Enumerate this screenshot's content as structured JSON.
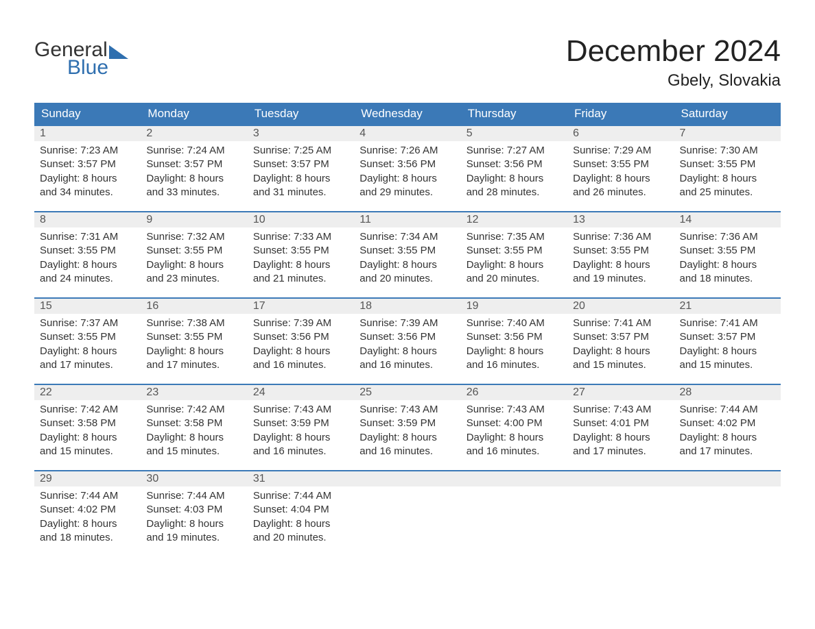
{
  "logo": {
    "line1": "General",
    "line2": "Blue"
  },
  "title": "December 2024",
  "location": "Gbely, Slovakia",
  "colors": {
    "header_bg": "#3b79b7",
    "header_text": "#ffffff",
    "daynum_bg": "#eeeeee",
    "daynum_border": "#3b79b7",
    "body_text": "#333333",
    "logo_blue": "#2f6faf",
    "logo_gray": "#333333"
  },
  "day_headers": [
    "Sunday",
    "Monday",
    "Tuesday",
    "Wednesday",
    "Thursday",
    "Friday",
    "Saturday"
  ],
  "weeks": [
    [
      {
        "n": "1",
        "sunrise": "Sunrise: 7:23 AM",
        "sunset": "Sunset: 3:57 PM",
        "d1": "Daylight: 8 hours",
        "d2": "and 34 minutes."
      },
      {
        "n": "2",
        "sunrise": "Sunrise: 7:24 AM",
        "sunset": "Sunset: 3:57 PM",
        "d1": "Daylight: 8 hours",
        "d2": "and 33 minutes."
      },
      {
        "n": "3",
        "sunrise": "Sunrise: 7:25 AM",
        "sunset": "Sunset: 3:57 PM",
        "d1": "Daylight: 8 hours",
        "d2": "and 31 minutes."
      },
      {
        "n": "4",
        "sunrise": "Sunrise: 7:26 AM",
        "sunset": "Sunset: 3:56 PM",
        "d1": "Daylight: 8 hours",
        "d2": "and 29 minutes."
      },
      {
        "n": "5",
        "sunrise": "Sunrise: 7:27 AM",
        "sunset": "Sunset: 3:56 PM",
        "d1": "Daylight: 8 hours",
        "d2": "and 28 minutes."
      },
      {
        "n": "6",
        "sunrise": "Sunrise: 7:29 AM",
        "sunset": "Sunset: 3:55 PM",
        "d1": "Daylight: 8 hours",
        "d2": "and 26 minutes."
      },
      {
        "n": "7",
        "sunrise": "Sunrise: 7:30 AM",
        "sunset": "Sunset: 3:55 PM",
        "d1": "Daylight: 8 hours",
        "d2": "and 25 minutes."
      }
    ],
    [
      {
        "n": "8",
        "sunrise": "Sunrise: 7:31 AM",
        "sunset": "Sunset: 3:55 PM",
        "d1": "Daylight: 8 hours",
        "d2": "and 24 minutes."
      },
      {
        "n": "9",
        "sunrise": "Sunrise: 7:32 AM",
        "sunset": "Sunset: 3:55 PM",
        "d1": "Daylight: 8 hours",
        "d2": "and 23 minutes."
      },
      {
        "n": "10",
        "sunrise": "Sunrise: 7:33 AM",
        "sunset": "Sunset: 3:55 PM",
        "d1": "Daylight: 8 hours",
        "d2": "and 21 minutes."
      },
      {
        "n": "11",
        "sunrise": "Sunrise: 7:34 AM",
        "sunset": "Sunset: 3:55 PM",
        "d1": "Daylight: 8 hours",
        "d2": "and 20 minutes."
      },
      {
        "n": "12",
        "sunrise": "Sunrise: 7:35 AM",
        "sunset": "Sunset: 3:55 PM",
        "d1": "Daylight: 8 hours",
        "d2": "and 20 minutes."
      },
      {
        "n": "13",
        "sunrise": "Sunrise: 7:36 AM",
        "sunset": "Sunset: 3:55 PM",
        "d1": "Daylight: 8 hours",
        "d2": "and 19 minutes."
      },
      {
        "n": "14",
        "sunrise": "Sunrise: 7:36 AM",
        "sunset": "Sunset: 3:55 PM",
        "d1": "Daylight: 8 hours",
        "d2": "and 18 minutes."
      }
    ],
    [
      {
        "n": "15",
        "sunrise": "Sunrise: 7:37 AM",
        "sunset": "Sunset: 3:55 PM",
        "d1": "Daylight: 8 hours",
        "d2": "and 17 minutes."
      },
      {
        "n": "16",
        "sunrise": "Sunrise: 7:38 AM",
        "sunset": "Sunset: 3:55 PM",
        "d1": "Daylight: 8 hours",
        "d2": "and 17 minutes."
      },
      {
        "n": "17",
        "sunrise": "Sunrise: 7:39 AM",
        "sunset": "Sunset: 3:56 PM",
        "d1": "Daylight: 8 hours",
        "d2": "and 16 minutes."
      },
      {
        "n": "18",
        "sunrise": "Sunrise: 7:39 AM",
        "sunset": "Sunset: 3:56 PM",
        "d1": "Daylight: 8 hours",
        "d2": "and 16 minutes."
      },
      {
        "n": "19",
        "sunrise": "Sunrise: 7:40 AM",
        "sunset": "Sunset: 3:56 PM",
        "d1": "Daylight: 8 hours",
        "d2": "and 16 minutes."
      },
      {
        "n": "20",
        "sunrise": "Sunrise: 7:41 AM",
        "sunset": "Sunset: 3:57 PM",
        "d1": "Daylight: 8 hours",
        "d2": "and 15 minutes."
      },
      {
        "n": "21",
        "sunrise": "Sunrise: 7:41 AM",
        "sunset": "Sunset: 3:57 PM",
        "d1": "Daylight: 8 hours",
        "d2": "and 15 minutes."
      }
    ],
    [
      {
        "n": "22",
        "sunrise": "Sunrise: 7:42 AM",
        "sunset": "Sunset: 3:58 PM",
        "d1": "Daylight: 8 hours",
        "d2": "and 15 minutes."
      },
      {
        "n": "23",
        "sunrise": "Sunrise: 7:42 AM",
        "sunset": "Sunset: 3:58 PM",
        "d1": "Daylight: 8 hours",
        "d2": "and 15 minutes."
      },
      {
        "n": "24",
        "sunrise": "Sunrise: 7:43 AM",
        "sunset": "Sunset: 3:59 PM",
        "d1": "Daylight: 8 hours",
        "d2": "and 16 minutes."
      },
      {
        "n": "25",
        "sunrise": "Sunrise: 7:43 AM",
        "sunset": "Sunset: 3:59 PM",
        "d1": "Daylight: 8 hours",
        "d2": "and 16 minutes."
      },
      {
        "n": "26",
        "sunrise": "Sunrise: 7:43 AM",
        "sunset": "Sunset: 4:00 PM",
        "d1": "Daylight: 8 hours",
        "d2": "and 16 minutes."
      },
      {
        "n": "27",
        "sunrise": "Sunrise: 7:43 AM",
        "sunset": "Sunset: 4:01 PM",
        "d1": "Daylight: 8 hours",
        "d2": "and 17 minutes."
      },
      {
        "n": "28",
        "sunrise": "Sunrise: 7:44 AM",
        "sunset": "Sunset: 4:02 PM",
        "d1": "Daylight: 8 hours",
        "d2": "and 17 minutes."
      }
    ],
    [
      {
        "n": "29",
        "sunrise": "Sunrise: 7:44 AM",
        "sunset": "Sunset: 4:02 PM",
        "d1": "Daylight: 8 hours",
        "d2": "and 18 minutes."
      },
      {
        "n": "30",
        "sunrise": "Sunrise: 7:44 AM",
        "sunset": "Sunset: 4:03 PM",
        "d1": "Daylight: 8 hours",
        "d2": "and 19 minutes."
      },
      {
        "n": "31",
        "sunrise": "Sunrise: 7:44 AM",
        "sunset": "Sunset: 4:04 PM",
        "d1": "Daylight: 8 hours",
        "d2": "and 20 minutes."
      },
      {
        "empty": true
      },
      {
        "empty": true
      },
      {
        "empty": true
      },
      {
        "empty": true
      }
    ]
  ]
}
